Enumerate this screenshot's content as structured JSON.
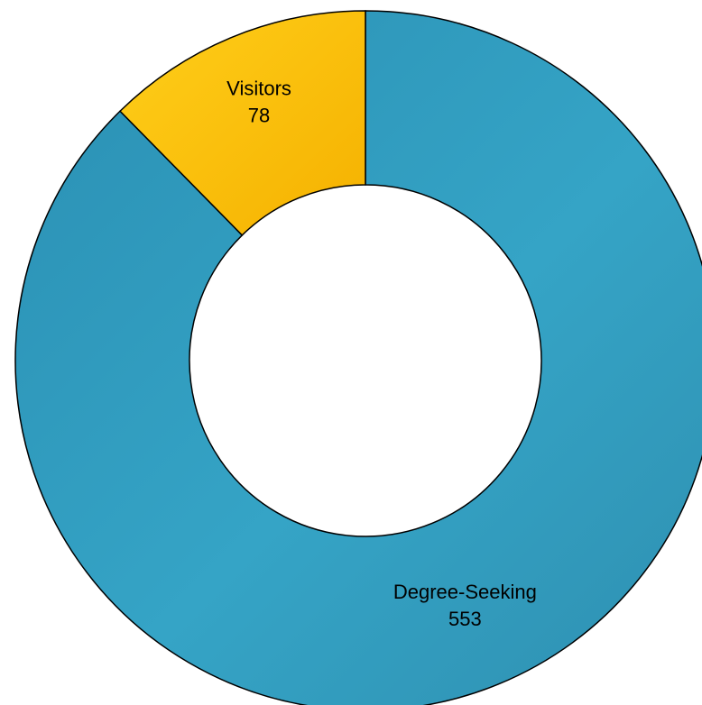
{
  "chart_data": {
    "type": "pie",
    "style": "donut",
    "categories": [
      "Degree-Seeking",
      "Visitors"
    ],
    "values": [
      553,
      78
    ],
    "labels": [
      {
        "name": "Degree-Seeking",
        "value": "553"
      },
      {
        "name": "Visitors",
        "value": "78"
      }
    ],
    "colors": {
      "Degree-Seeking": "#2e9bbf",
      "Visitors": "#ffc107"
    },
    "title": "",
    "legend": "none"
  }
}
